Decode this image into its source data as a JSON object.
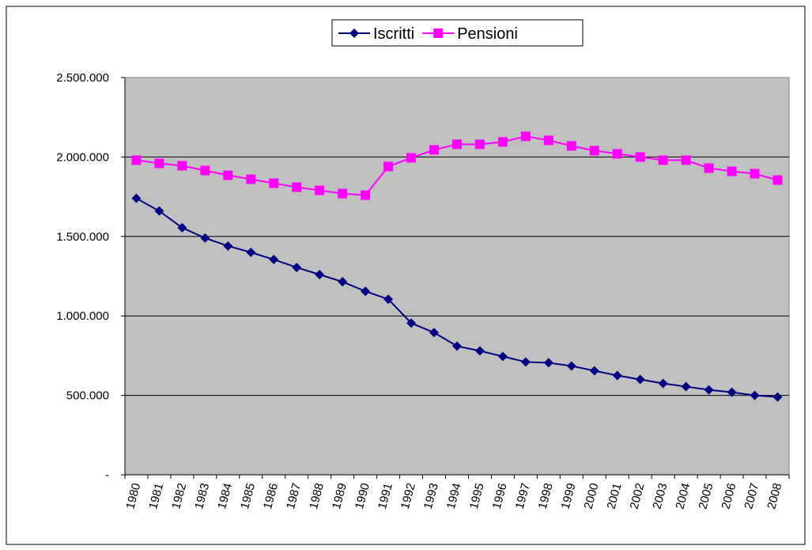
{
  "chart_data": {
    "type": "line",
    "categories": [
      "1980",
      "1981",
      "1982",
      "1983",
      "1984",
      "1985",
      "1986",
      "1987",
      "1988",
      "1989",
      "1990",
      "1991",
      "1992",
      "1993",
      "1994",
      "1995",
      "1996",
      "1997",
      "1998",
      "1999",
      "2000",
      "2001",
      "2002",
      "2003",
      "2004",
      "2005",
      "2006",
      "2007",
      "2008"
    ],
    "series": [
      {
        "name": "Iscritti",
        "color": "#000080",
        "marker": "diamond",
        "values": [
          1740000,
          1660000,
          1555000,
          1490000,
          1440000,
          1400000,
          1355000,
          1305000,
          1260000,
          1215000,
          1155000,
          1105000,
          955000,
          895000,
          810000,
          780000,
          745000,
          710000,
          705000,
          685000,
          655000,
          625000,
          600000,
          575000,
          555000,
          535000,
          520000,
          500000,
          490000
        ]
      },
      {
        "name": "Pensioni",
        "color": "#ff00ff",
        "marker": "square",
        "values": [
          1980000,
          1960000,
          1945000,
          1915000,
          1885000,
          1860000,
          1835000,
          1810000,
          1790000,
          1770000,
          1760000,
          1940000,
          1995000,
          2045000,
          2080000,
          2080000,
          2095000,
          2130000,
          2105000,
          2070000,
          2040000,
          2020000,
          2000000,
          1980000,
          1980000,
          1930000,
          1910000,
          1895000,
          1855000
        ]
      }
    ],
    "ylim": [
      0,
      2500000
    ],
    "yticks": [
      {
        "value": 0,
        "label": "-"
      },
      {
        "value": 500000,
        "label": "500.000"
      },
      {
        "value": 1000000,
        "label": "1.000.000"
      },
      {
        "value": 1500000,
        "label": "1.500.000"
      },
      {
        "value": 2000000,
        "label": "2.000.000"
      },
      {
        "value": 2500000,
        "label": "2.500.000"
      }
    ],
    "grid": true,
    "legend": "top",
    "plot_background": "#c0c0c0"
  }
}
